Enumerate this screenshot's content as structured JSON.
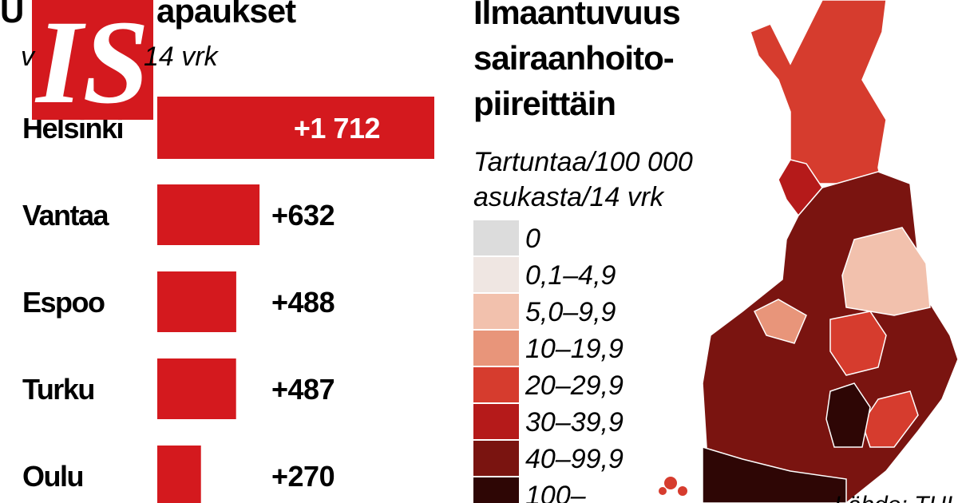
{
  "chart_data": [
    {
      "type": "bar",
      "title": "apaukset",
      "title_initial": "U",
      "subtitle_initial": "v",
      "subtitle": "14 vrk",
      "categories": [
        "Helsinki",
        "Vantaa",
        "Espoo",
        "Turku",
        "Oulu"
      ],
      "values": [
        1712,
        632,
        488,
        487,
        270
      ],
      "value_labels": [
        "+1 712",
        "+632",
        "+488",
        "+487",
        "+270"
      ],
      "color": "#d4191e",
      "xlim": [
        0,
        1712
      ]
    },
    {
      "type": "map",
      "title": [
        "Ilmaantuvuus",
        "sairaanhoito-",
        "piireittäin"
      ],
      "legend_title": [
        "Tartuntaa/100 000",
        "asukasta/14 vrk"
      ],
      "legend_labels": [
        "0",
        "0,1–4,9",
        "5,0–9,9",
        "10–19,9",
        "20–29,9",
        "30–39,9",
        "40–99,9",
        "100–"
      ],
      "legend_colors": [
        "#dcdcdc",
        "#efe6e2",
        "#f2c1ad",
        "#e8957a",
        "#d63c2e",
        "#b51a1a",
        "#7a1410",
        "#2e0605"
      ],
      "source": "Lähde: THL"
    }
  ]
}
